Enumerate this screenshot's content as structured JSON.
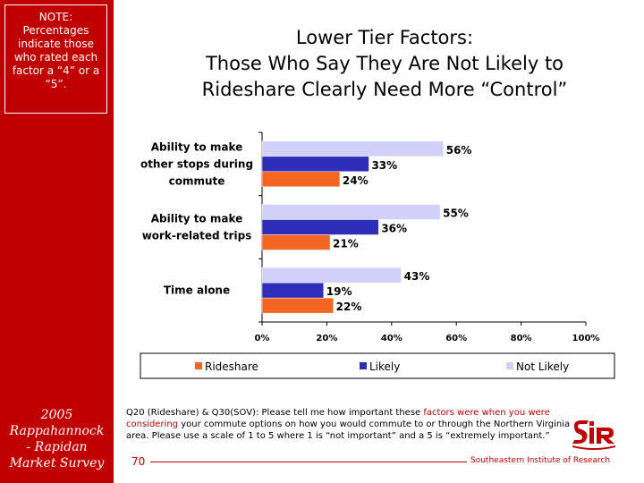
{
  "sidebar": {
    "note": "NOTE: Percentages indicate those who rated each factor a “4” or a “5”.",
    "footer_line1": "2005",
    "footer_line2": "Rappahannock",
    "footer_line3": "- Rapidan",
    "footer_line4": "Market Survey"
  },
  "colors": {
    "sidebar": "#c00000",
    "rideshare": "#f26522",
    "likely": "#2e2eb8",
    "not_likely": "#d0d0f8",
    "accent": "#c00000"
  },
  "chart_data": {
    "type": "bar",
    "orientation": "horizontal",
    "title": "Lower Tier Factors: Those Who Say They Are Not Likely to Rideshare Clearly Need More “Control”",
    "title_line1": "Lower Tier Factors:",
    "title_line2": "Those Who Say They Are Not Likely to",
    "title_line3": "Rideshare Clearly Need More “Control”",
    "categories": [
      [
        "Ability to make",
        "other stops during",
        "commute"
      ],
      [
        "Ability to make",
        "work-related trips"
      ],
      [
        "Time alone"
      ]
    ],
    "series": [
      {
        "name": "Not Likely",
        "values": [
          56,
          55,
          43
        ],
        "labels": [
          "56%",
          "55%",
          "43%"
        ]
      },
      {
        "name": "Likely",
        "values": [
          33,
          36,
          19
        ],
        "labels": [
          "33%",
          "36%",
          "19%"
        ]
      },
      {
        "name": "Rideshare",
        "values": [
          24,
          21,
          22
        ],
        "labels": [
          "24%",
          "21%",
          "22%"
        ]
      }
    ],
    "xlim": [
      0,
      100
    ],
    "xticks": [
      "0%",
      "20%",
      "40%",
      "60%",
      "80%",
      "100%"
    ],
    "legend": [
      "Rideshare",
      "Likely",
      "Not Likely"
    ],
    "grid": false
  },
  "footnote": {
    "prefix": "Q20 (Rideshare) & Q30(SOV): Please tell me how important these ",
    "highlight1": "factors were when you were considering",
    "middle": " your commute options on how you would commute to or through the Northern Virginia area. Please use a scale of 1 to 5 where 1 is “not important” and a 5 is “extremely important.”"
  },
  "page_number": "70",
  "organization": "Southeastern Institute of Research"
}
